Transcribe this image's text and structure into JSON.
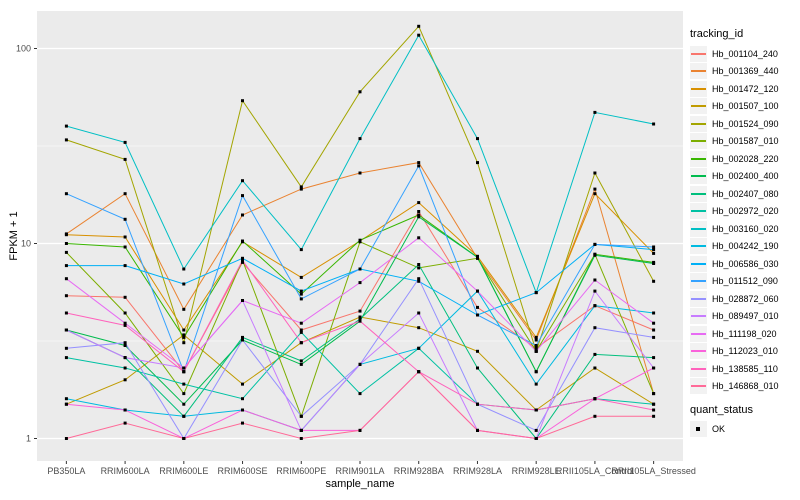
{
  "figure": {
    "y_axis_title": "FPKM + 1",
    "x_axis_title": "sample_name",
    "legend_tracking_title": "tracking_id",
    "legend_quant_title": "quant_status",
    "quant_items": [
      {
        "label": "OK",
        "marker": "filled-black-square"
      }
    ],
    "panel_bg": "#EBEBEB",
    "grid_color": "#FFFFFF",
    "tick_label_color": "#4D4D4D"
  },
  "chart_data": {
    "type": "line",
    "title": "",
    "xlabel": "sample_name",
    "ylabel": "FPKM + 1",
    "y_scale": "log10",
    "ylim": [
      1,
      140
    ],
    "y_major_ticks": [
      1,
      10,
      100
    ],
    "y_minor_ticks": [
      3.162,
      31.62
    ],
    "grid": true,
    "legend_position": "right",
    "point_marker": "filled-black-square (quant_status OK)",
    "categories": [
      "PB350LA",
      "RRIM600LA",
      "RRIM600LE",
      "RRIM600SE",
      "RRIM600PE",
      "RRIM901LA",
      "RRIM928BA",
      "RRIM928LA",
      "RRIM928LE",
      "RRII105LA_Control",
      "RRII105LA_Stressed"
    ],
    "series": [
      {
        "name": "Hb_001104_240",
        "color": "#F8766D",
        "quant_status": "OK",
        "values": [
          5.4,
          5.3,
          2.2,
          8.0,
          3.6,
          4.5,
          14.6,
          4.7,
          2.9,
          4.8,
          3.6
        ]
      },
      {
        "name": "Hb_001369_440",
        "color": "#EA8331",
        "quant_status": "OK",
        "values": [
          11.2,
          18.0,
          4.6,
          14.0,
          19.0,
          23.0,
          26.0,
          8.4,
          3.2,
          19.0,
          1.7
        ]
      },
      {
        "name": "Hb_001472_120",
        "color": "#D89000",
        "quant_status": "OK",
        "values": [
          11.1,
          10.8,
          3.6,
          10.2,
          6.7,
          10.3,
          16.2,
          8.6,
          3.3,
          18.0,
          8.9
        ]
      },
      {
        "name": "Hb_001507_100",
        "color": "#C09B00",
        "quant_status": "OK",
        "values": [
          1.5,
          2.0,
          3.4,
          1.9,
          3.1,
          4.2,
          3.7,
          2.8,
          1.4,
          2.3,
          1.5
        ]
      },
      {
        "name": "Hb_001524_090",
        "color": "#A3A500",
        "quant_status": "OK",
        "values": [
          34.0,
          27.0,
          3.1,
          54.0,
          19.5,
          60.0,
          130.0,
          26.0,
          2.8,
          23.0,
          6.4
        ]
      },
      {
        "name": "Hb_001587_010",
        "color": "#7CAE00",
        "quant_status": "OK",
        "values": [
          9.0,
          4.4,
          1.7,
          8.2,
          1.3,
          10.2,
          7.5,
          8.4,
          2.8,
          8.8,
          1.7
        ]
      },
      {
        "name": "Hb_002028_220",
        "color": "#39B600",
        "quant_status": "OK",
        "values": [
          10.0,
          9.6,
          3.3,
          10.3,
          5.5,
          10.4,
          14.0,
          8.5,
          2.2,
          8.8,
          8.0
        ]
      },
      {
        "name": "Hb_002400_400",
        "color": "#00BB4E",
        "quant_status": "OK",
        "values": [
          3.6,
          3.0,
          1.5,
          3.2,
          2.4,
          4.0,
          13.7,
          8.5,
          2.2,
          8.7,
          7.9
        ]
      },
      {
        "name": "Hb_002407_080",
        "color": "#00BF7D",
        "quant_status": "OK",
        "values": [
          3.6,
          2.6,
          1.3,
          3.3,
          2.5,
          4.1,
          7.8,
          2.3,
          1.0,
          2.7,
          2.6
        ]
      },
      {
        "name": "Hb_002972_020",
        "color": "#00C1A3",
        "quant_status": "OK",
        "values": [
          2.6,
          2.3,
          1.9,
          1.6,
          3.5,
          1.7,
          2.9,
          1.5,
          1.4,
          1.6,
          1.5
        ]
      },
      {
        "name": "Hb_003160_020",
        "color": "#00BFC4",
        "quant_status": "OK",
        "values": [
          40.0,
          33.0,
          7.4,
          21.0,
          9.3,
          34.5,
          117.0,
          34.5,
          5.6,
          47.0,
          41.0
        ]
      },
      {
        "name": "Hb_004242_190",
        "color": "#00BAE0",
        "quant_status": "OK",
        "values": [
          1.6,
          1.4,
          1.3,
          1.4,
          1.1,
          2.4,
          2.9,
          5.7,
          1.9,
          4.8,
          4.4
        ]
      },
      {
        "name": "Hb_006586_030",
        "color": "#00B0F6",
        "quant_status": "OK",
        "values": [
          7.7,
          7.7,
          6.2,
          8.4,
          5.7,
          7.4,
          6.4,
          4.3,
          5.6,
          9.9,
          9.3
        ]
      },
      {
        "name": "Hb_011512_090",
        "color": "#35A2FF",
        "quant_status": "OK",
        "values": [
          18.0,
          13.3,
          2.2,
          17.6,
          5.2,
          7.4,
          25.0,
          4.3,
          3.0,
          9.9,
          9.6
        ]
      },
      {
        "name": "Hb_028872_060",
        "color": "#9590FF",
        "quant_status": "OK",
        "values": [
          2.9,
          3.1,
          1.0,
          3.2,
          1.3,
          2.4,
          6.6,
          1.5,
          1.1,
          3.7,
          3.3
        ]
      },
      {
        "name": "Hb_089497_010",
        "color": "#C77CFF",
        "quant_status": "OK",
        "values": [
          3.6,
          2.6,
          2.3,
          5.1,
          1.1,
          2.4,
          4.4,
          1.1,
          1.0,
          5.7,
          2.3
        ]
      },
      {
        "name": "Hb_111198_020",
        "color": "#E76BF3",
        "quant_status": "OK",
        "values": [
          6.6,
          3.9,
          2.3,
          5.1,
          3.9,
          6.3,
          10.7,
          5.7,
          2.8,
          6.5,
          3.9
        ]
      },
      {
        "name": "Hb_112023_010",
        "color": "#FA62DB",
        "quant_status": "OK",
        "values": [
          1.5,
          1.4,
          1.0,
          1.4,
          1.1,
          1.1,
          2.2,
          1.1,
          1.0,
          1.6,
          2.3
        ]
      },
      {
        "name": "Hb_138585_110",
        "color": "#FF62BC",
        "quant_status": "OK",
        "values": [
          4.4,
          3.8,
          2.2,
          8.2,
          3.1,
          4.0,
          2.2,
          1.5,
          1.4,
          1.6,
          1.4
        ]
      },
      {
        "name": "Hb_146868_010",
        "color": "#FF6A98",
        "quant_status": "OK",
        "values": [
          1.0,
          1.2,
          1.0,
          1.2,
          1.0,
          1.1,
          2.2,
          1.1,
          1.0,
          1.3,
          1.3
        ]
      }
    ]
  }
}
